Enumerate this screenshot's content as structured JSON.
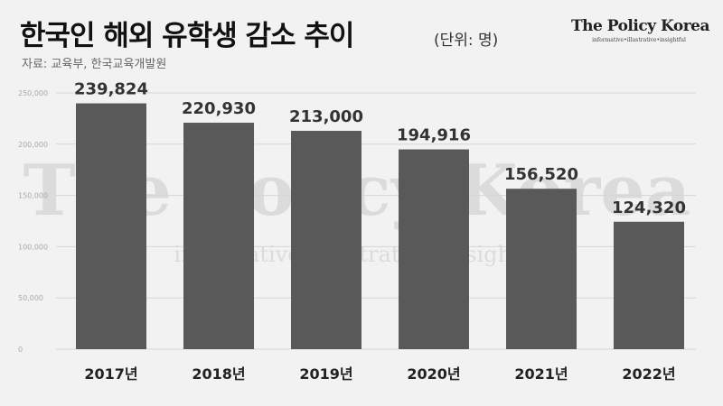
{
  "header": {
    "title": "한국인 해외 유학생 감소 추이",
    "unit": "(단위: 명)",
    "source": "자료: 교육부, 한국교육개발원"
  },
  "brand": {
    "name": "The Policy Korea",
    "tagline": "informative•illustrative•insightful"
  },
  "colors": {
    "background": "#f2f2f2",
    "bar": "#595959",
    "grid": "#d6d6d6",
    "tick_text": "#aaaaaa",
    "label_text": "#333333"
  },
  "chart_data": {
    "type": "bar",
    "title": "한국인 해외 유학생 감소 추이",
    "categories": [
      "2017년",
      "2018년",
      "2019년",
      "2020년",
      "2021년",
      "2022년"
    ],
    "values": [
      239824,
      220930,
      213000,
      194916,
      156520,
      124320
    ],
    "value_labels": [
      "239,824",
      "220,930",
      "213,000",
      "194,916",
      "156,520",
      "124,320"
    ],
    "ylim": [
      0,
      250000
    ],
    "yticks": [
      0,
      50000,
      100000,
      150000,
      200000,
      250000
    ],
    "ytick_labels": [
      "0",
      "50,000",
      "100,000",
      "150,000",
      "200,000",
      "250,000"
    ],
    "xlabel": "",
    "ylabel": "",
    "grid": true,
    "legend": "none"
  }
}
